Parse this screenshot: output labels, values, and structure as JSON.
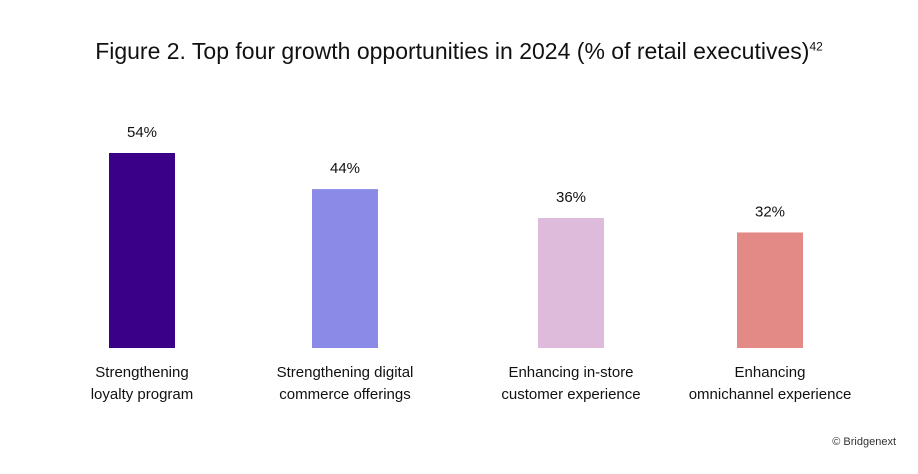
{
  "chart_data": {
    "type": "bar",
    "title": "Figure 2. Top four growth opportunities in 2024 (% of retail executives)",
    "title_superscript": "42",
    "categories": [
      [
        "Strengthening",
        "loyalty program"
      ],
      [
        "Strengthening digital",
        "commerce offerings"
      ],
      [
        "Enhancing in-store",
        "customer experience"
      ],
      [
        "Enhancing",
        "omnichannel experience"
      ]
    ],
    "values": [
      54,
      44,
      36,
      32
    ],
    "value_labels": [
      "54%",
      "44%",
      "36%",
      "32%"
    ],
    "colors": [
      "#3a0088",
      "#8b8ae6",
      "#dfbbdb",
      "#e48a86"
    ],
    "ylim": [
      0,
      54
    ],
    "xlabel": "",
    "ylabel": ""
  },
  "footer": {
    "copyright": "© Bridgenext"
  }
}
